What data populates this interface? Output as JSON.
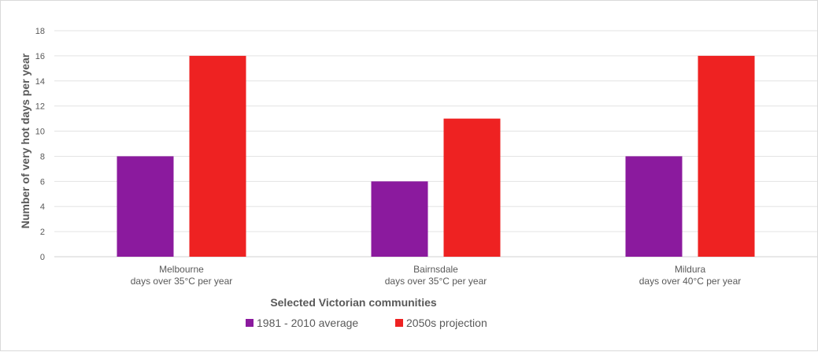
{
  "chart_data": {
    "type": "bar",
    "categories": [
      [
        "Melbourne",
        "days over 35°C per year"
      ],
      [
        "Bairnsdale",
        "days over 35°C per year"
      ],
      [
        "Mildura",
        "days over 40°C per year"
      ]
    ],
    "series": [
      {
        "name": "1981 - 2010 average",
        "values": [
          8,
          6,
          8
        ],
        "color": "#8b1a9e"
      },
      {
        "name": "2050s projection",
        "values": [
          16,
          11,
          16
        ],
        "color": "#ee2222"
      }
    ],
    "xlabel": "Selected Victorian communities",
    "ylabel": "Number of very hot days per year",
    "ylim": [
      0,
      18
    ],
    "yticks": [
      "0",
      "2",
      "4",
      "6",
      "8",
      "10",
      "12",
      "14",
      "16",
      "18"
    ],
    "grid": true,
    "legend_position": "bottom"
  }
}
